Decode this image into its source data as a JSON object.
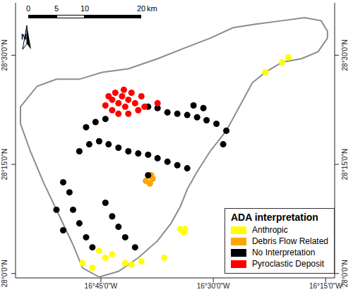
{
  "chart_data": {
    "type": "scatter",
    "legend_title": "ADA interpretation",
    "legend": "bottom-right",
    "grid": false,
    "north_arrow": "N",
    "scale_bar": {
      "ticks": [
        0,
        5,
        10,
        20
      ],
      "unit": "km"
    },
    "xlim": [
      -16.94,
      -16.23
    ],
    "ylim": [
      27.99,
      28.62
    ],
    "xticks": [
      {
        "value": -16.75,
        "label": "16°45'0\"W"
      },
      {
        "value": -16.5,
        "label": "16°30'0\"W"
      },
      {
        "value": -16.25,
        "label": "16°15'0\"W"
      }
    ],
    "yticks": [
      {
        "value": 28.0,
        "label": "28°0'0\"N"
      },
      {
        "value": 28.25,
        "label": "28°15'0\"N"
      },
      {
        "value": 28.5,
        "label": "28°30'0\"N"
      }
    ],
    "island": {
      "x": [
        -16.246,
        -16.267,
        -16.304,
        -16.347,
        -16.384,
        -16.413,
        -16.442,
        -16.471,
        -16.507,
        -16.536,
        -16.558,
        -16.573,
        -16.594,
        -16.624,
        -16.667,
        -16.711,
        -16.754,
        -16.791,
        -16.813,
        -16.842,
        -16.878,
        -16.907,
        -16.929,
        -16.929,
        -16.892,
        -16.849,
        -16.798,
        -16.747,
        -16.689,
        -16.624,
        -16.565,
        -16.507,
        -16.456,
        -16.406,
        -16.347,
        -16.297,
        -16.26,
        -16.246
      ],
      "y": [
        28.539,
        28.508,
        28.492,
        28.484,
        28.461,
        28.437,
        28.382,
        28.327,
        28.28,
        28.233,
        28.193,
        28.154,
        28.115,
        28.075,
        28.036,
        28.005,
        27.992,
        28.013,
        28.068,
        28.131,
        28.209,
        28.28,
        28.343,
        28.382,
        28.429,
        28.445,
        28.445,
        28.461,
        28.469,
        28.492,
        28.516,
        28.539,
        28.563,
        28.571,
        28.579,
        28.586,
        28.579,
        28.555
      ]
    },
    "series": [
      {
        "name": "Anthropic",
        "color": "#ffff00",
        "marker": "circle",
        "x": [
          -16.574,
          -16.57,
          -16.565,
          -16.563,
          -16.754,
          -16.74,
          -16.725,
          -16.791,
          -16.769,
          -16.696,
          -16.682,
          -16.66,
          -16.609,
          -16.347,
          -16.333,
          -16.384
        ],
        "y": [
          28.102,
          28.099,
          28.094,
          28.102,
          28.052,
          28.036,
          28.044,
          28.024,
          28.013,
          28.024,
          28.02,
          28.028,
          28.036,
          28.484,
          28.495,
          28.461
        ]
      },
      {
        "name": "Debris Flow Related",
        "color": "#ffa500",
        "marker": "circle",
        "x": [
          -16.65,
          -16.641,
          -16.635,
          -16.638
        ],
        "y": [
          28.212,
          28.206,
          28.217,
          28.225
        ]
      },
      {
        "name": "No Interpretation",
        "color": "#000000",
        "marker": "circle",
        "x": [
          -16.783,
          -16.762,
          -16.74,
          -16.645,
          -16.624,
          -16.602,
          -16.58,
          -16.558,
          -16.536,
          -16.515,
          -16.798,
          -16.776,
          -16.754,
          -16.733,
          -16.711,
          -16.689,
          -16.667,
          -16.645,
          -16.624,
          -16.602,
          -16.58,
          -16.558,
          -16.544,
          -16.522,
          -16.493,
          -16.471,
          -16.834,
          -16.82,
          -16.812,
          -16.798,
          -16.783,
          -16.769,
          -16.834,
          -16.849,
          -16.74,
          -16.725,
          -16.711,
          -16.696,
          -16.674,
          -16.645,
          -16.478
        ],
        "y": [
          28.335,
          28.347,
          28.354,
          28.382,
          28.379,
          28.369,
          28.366,
          28.363,
          28.358,
          28.351,
          28.28,
          28.296,
          28.303,
          28.296,
          28.288,
          28.28,
          28.275,
          28.272,
          28.264,
          28.256,
          28.248,
          28.241,
          28.385,
          28.379,
          28.343,
          28.327,
          28.209,
          28.186,
          28.146,
          28.115,
          28.083,
          28.06,
          28.099,
          28.146,
          28.162,
          28.131,
          28.107,
          28.083,
          28.06,
          28.225,
          28.296
        ]
      },
      {
        "name": "Pyroclastic Deposit",
        "color": "#ff0000",
        "marker": "circle",
        "x": [
          -16.733,
          -16.725,
          -16.718,
          -16.711,
          -16.703,
          -16.696,
          -16.689,
          -16.682,
          -16.674,
          -16.667,
          -16.725,
          -16.711,
          -16.689,
          -16.66,
          -16.653,
          -16.74,
          -16.624,
          -16.699
        ],
        "y": [
          28.406,
          28.398,
          28.414,
          28.39,
          28.406,
          28.382,
          28.398,
          28.414,
          28.39,
          28.374,
          28.374,
          28.366,
          28.366,
          28.406,
          28.382,
          28.385,
          28.39,
          28.421
        ]
      }
    ]
  }
}
